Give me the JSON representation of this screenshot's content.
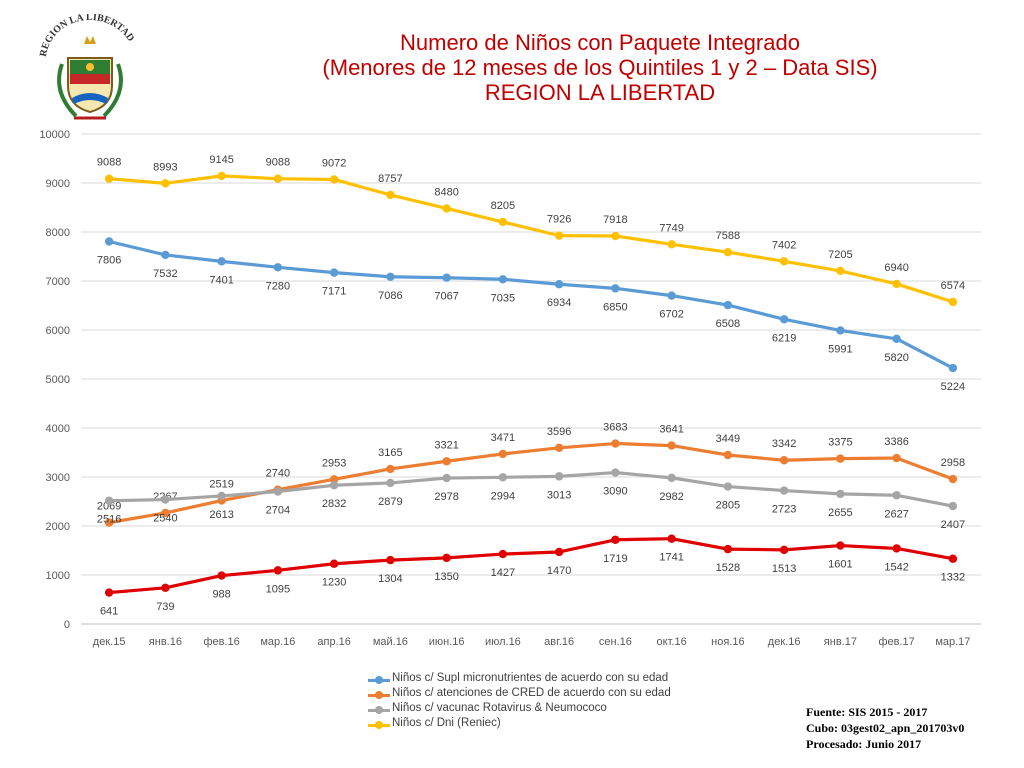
{
  "logo": {
    "text": "REGION LA LIBERTAD"
  },
  "title": {
    "line1": "Numero de Niños con Paquete Integrado",
    "line2": "(Menores de 12 meses de los Quintiles 1 y 2 – Data SIS)",
    "line3": "REGION LA LIBERTAD"
  },
  "chart_data": {
    "type": "line",
    "title": "Numero de Niños con Paquete Integrado (Menores de 12 meses de los Quintiles 1 y 2 – Data SIS) REGION LA LIBERTAD",
    "categories": [
      "дек.15",
      "янв.16",
      "фев.16",
      "мар.16",
      "апр.16",
      "май.16",
      "июн.16",
      "июл.16",
      "авг.16",
      "сен.16",
      "окт.16",
      "ноя.16",
      "дек.16",
      "янв.17",
      "фев.17",
      "мар.17"
    ],
    "ylim": [
      0,
      10000
    ],
    "yticks": [
      0,
      1000,
      2000,
      3000,
      4000,
      5000,
      6000,
      7000,
      8000,
      9000,
      10000
    ],
    "grid": true,
    "legend_position": "bottom",
    "series": [
      {
        "name": "Niños c/ Supl micronutrientes de acuerdo con su edad",
        "color": "#5b9bd5",
        "label_pos": "below",
        "values": [
          7806,
          7532,
          7401,
          7280,
          7171,
          7086,
          7067,
          7035,
          6934,
          6850,
          6702,
          6508,
          6219,
          5991,
          5820,
          5224
        ]
      },
      {
        "name": "Niños c/ atenciones de CRED de acuerdo con su edad",
        "color": "#ed7d31",
        "label_pos": "above",
        "values": [
          2069,
          2267,
          2519,
          2740,
          2953,
          3165,
          3321,
          3471,
          3596,
          3683,
          3641,
          3449,
          3342,
          3375,
          3386,
          2958
        ]
      },
      {
        "name": "Niños c/ vacunac Rotavirus & Neumococo",
        "color": "#a5a5a5",
        "label_pos": "below",
        "values": [
          2516,
          2540,
          2613,
          2704,
          2832,
          2879,
          2978,
          2994,
          3013,
          3090,
          2982,
          2805,
          2723,
          2655,
          2627,
          2407
        ]
      },
      {
        "name": "Niños c/ Dni (Reniec)",
        "color": "#ffc000",
        "label_pos": "above",
        "values": [
          9088,
          8993,
          9145,
          9088,
          9072,
          8757,
          8480,
          8205,
          7926,
          7918,
          7749,
          7588,
          7402,
          7205,
          6940,
          6574
        ]
      },
      {
        "name": "",
        "color": "#e00000",
        "label_pos": "below",
        "in_legend": false,
        "values": [
          641,
          739,
          988,
          1095,
          1230,
          1304,
          1350,
          1427,
          1470,
          1719,
          1741,
          1528,
          1513,
          1601,
          1542,
          1332
        ]
      }
    ]
  },
  "source": {
    "line1": "Fuente: SIS 2015 - 2017",
    "line2": "Cubo: 03gest02_apn_201703v0",
    "line3": "Procesado: Junio 2017"
  }
}
